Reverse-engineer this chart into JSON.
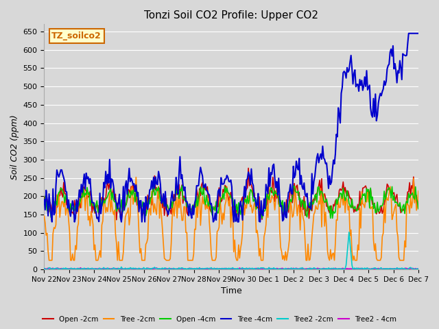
{
  "title": "Tonzi Soil CO2 Profile: Upper CO2",
  "ylabel": "Soil CO2 (ppm)",
  "xlabel": "Time",
  "ylim": [
    0,
    670
  ],
  "yticks": [
    0,
    50,
    100,
    150,
    200,
    250,
    300,
    350,
    400,
    450,
    500,
    550,
    600,
    650
  ],
  "background_color": "#d8d8d8",
  "grid_color": "#ffffff",
  "label_box_text": "TZ_soilco2",
  "label_box_bg": "#ffffcc",
  "label_box_border": "#cc6600",
  "series": {
    "open_2cm": {
      "color": "#cc0000",
      "label": "Open -2cm",
      "lw": 1.2
    },
    "tree_2cm": {
      "color": "#ff8800",
      "label": "Tree -2cm",
      "lw": 1.2
    },
    "open_4cm": {
      "color": "#00cc00",
      "label": "Open -4cm",
      "lw": 1.2
    },
    "tree_4cm": {
      "color": "#0000cc",
      "label": "Tree -4cm",
      "lw": 1.5
    },
    "tree2_2cm": {
      "color": "#00cccc",
      "label": "Tree2 -2cm",
      "lw": 1.2
    },
    "tree2_4cm": {
      "color": "#cc00cc",
      "label": "Tree2 - 4cm",
      "lw": 1.2
    }
  },
  "x_tick_labels": [
    "Nov 22",
    "Nov 23",
    "Nov 24",
    "Nov 25",
    "Nov 26",
    "Nov 27",
    "Nov 28",
    "Nov 29",
    "Nov 30",
    "Dec 1",
    "Dec 2",
    "Dec 3",
    "Dec 4",
    "Dec 5",
    "Dec 6",
    "Dec 7"
  ],
  "num_days": 15,
  "pts_per_day": 24
}
